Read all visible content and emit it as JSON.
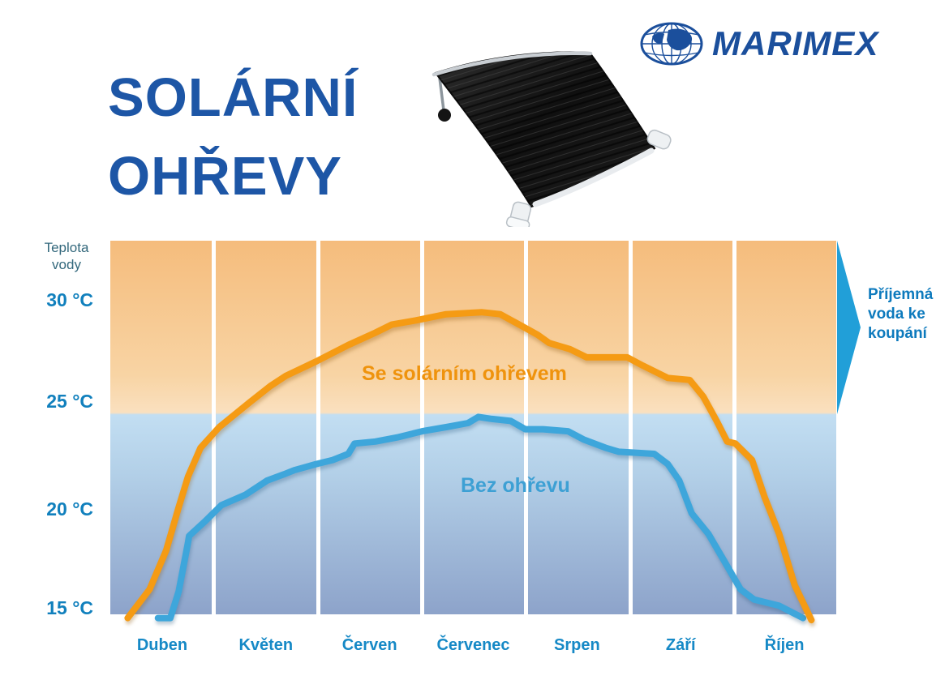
{
  "header": {
    "title_line1": "SOLÁRNÍ",
    "title_line2": "OHŘEVY",
    "brand": "MARIMEX"
  },
  "chart": {
    "y_axis_title": "Teplota vody",
    "y_ticks": [
      "30 °C",
      "25 °C",
      "20 °C",
      "15 °C"
    ],
    "months": [
      "Duben",
      "Květen",
      "Červen",
      "Červenec",
      "Srpen",
      "Září",
      "Říjen"
    ],
    "label_solar": "Se solárním ohřevem",
    "label_plain": "Bez ohřevu",
    "annotation": "Příjemná voda ke koupání"
  },
  "colors": {
    "brand_blue": "#1b4f9c",
    "title_blue": "#1d56a6",
    "month_label_blue": "#1689c6",
    "tick_blue": "#1180bd",
    "axis_title_teal": "#33687c",
    "solar_line_orange": "#f59b14",
    "plain_line_blue": "#3ea6db",
    "solar_text_orange": "#ef930d",
    "plain_text_blue": "#3da0d4",
    "annotation_blue": "#0d7abd",
    "arrow_blue": "#219fd8",
    "warm_zone_top": "#f5bc7c",
    "warm_zone_bottom": "#fae0bf",
    "cool_zone_top": "#c2def2",
    "cool_zone_bottom": "#8da3ca"
  },
  "chart_data": {
    "type": "line",
    "title": "",
    "x_categories": [
      "Duben",
      "Květen",
      "Červen",
      "Červenec",
      "Srpen",
      "Září",
      "Říjen"
    ],
    "x_scale_note": "x = month index, 0 = Duben (April) … 6 = Říjen (October); fractional = within month",
    "y_unit": "°C",
    "ylim": [
      14,
      33
    ],
    "y_ticks": [
      30,
      25,
      20,
      15
    ],
    "background_split_at_c": 24.5,
    "legend_position": "inline-labels",
    "grid": "vertical month columns separated by white gaps",
    "series": [
      {
        "name": "Se solárním ohřevem",
        "color": "#f59b14",
        "points": [
          [
            -0.32,
            14.5
          ],
          [
            -0.11,
            15.9
          ],
          [
            0.05,
            17.8
          ],
          [
            0.17,
            19.9
          ],
          [
            0.26,
            21.4
          ],
          [
            0.38,
            22.8
          ],
          [
            0.56,
            23.8
          ],
          [
            0.85,
            25.0
          ],
          [
            1.05,
            25.8
          ],
          [
            1.2,
            26.3
          ],
          [
            1.49,
            27.0
          ],
          [
            1.8,
            27.8
          ],
          [
            2.06,
            28.4
          ],
          [
            2.22,
            28.8
          ],
          [
            2.45,
            29.0
          ],
          [
            2.74,
            29.3
          ],
          [
            3.08,
            29.4
          ],
          [
            3.26,
            29.3
          ],
          [
            3.44,
            28.8
          ],
          [
            3.62,
            28.3
          ],
          [
            3.73,
            27.9
          ],
          [
            3.93,
            27.6
          ],
          [
            4.09,
            27.2
          ],
          [
            4.48,
            27.2
          ],
          [
            4.63,
            26.8
          ],
          [
            4.87,
            26.2
          ],
          [
            5.08,
            26.1
          ],
          [
            5.21,
            25.3
          ],
          [
            5.34,
            24.1
          ],
          [
            5.44,
            23.1
          ],
          [
            5.52,
            23.0
          ],
          [
            5.68,
            22.2
          ],
          [
            5.8,
            20.4
          ],
          [
            5.94,
            18.6
          ],
          [
            6.09,
            16.1
          ],
          [
            6.25,
            14.4
          ]
        ]
      },
      {
        "name": "Bez ohřevu",
        "color": "#3ea6db",
        "points": [
          [
            -0.03,
            14.5
          ],
          [
            0.09,
            14.5
          ],
          [
            0.17,
            15.8
          ],
          [
            0.26,
            18.2
          ],
          [
            0.27,
            18.5
          ],
          [
            0.42,
            19.2
          ],
          [
            0.58,
            20.0
          ],
          [
            0.81,
            20.5
          ],
          [
            1.02,
            21.2
          ],
          [
            1.18,
            21.5
          ],
          [
            1.28,
            21.7
          ],
          [
            1.49,
            22.0
          ],
          [
            1.65,
            22.2
          ],
          [
            1.8,
            22.5
          ],
          [
            1.86,
            23.0
          ],
          [
            2.06,
            23.1
          ],
          [
            2.27,
            23.3
          ],
          [
            2.51,
            23.6
          ],
          [
            2.74,
            23.8
          ],
          [
            2.95,
            24.0
          ],
          [
            3.05,
            24.3
          ],
          [
            3.18,
            24.2
          ],
          [
            3.36,
            24.1
          ],
          [
            3.5,
            23.7
          ],
          [
            3.67,
            23.7
          ],
          [
            3.91,
            23.6
          ],
          [
            4.06,
            23.2
          ],
          [
            4.27,
            22.8
          ],
          [
            4.4,
            22.6
          ],
          [
            4.74,
            22.5
          ],
          [
            4.87,
            22.0
          ],
          [
            4.98,
            21.2
          ],
          [
            5.1,
            19.6
          ],
          [
            5.26,
            18.6
          ],
          [
            5.41,
            17.3
          ],
          [
            5.57,
            15.9
          ],
          [
            5.7,
            15.4
          ],
          [
            5.94,
            15.1
          ],
          [
            6.17,
            14.5
          ]
        ]
      }
    ]
  }
}
